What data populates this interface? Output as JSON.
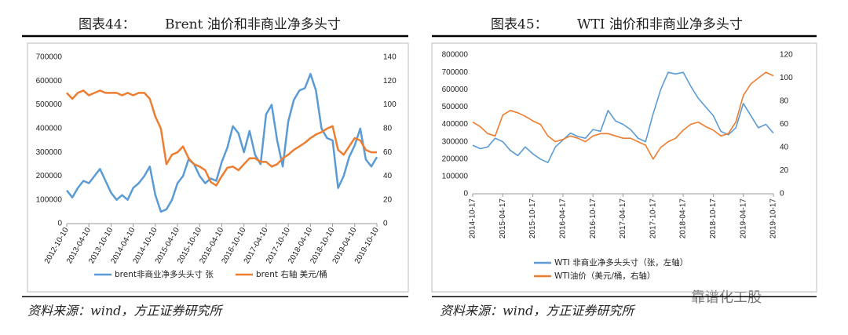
{
  "chart_data": [
    {
      "type": "line",
      "figure_label": "图表44：",
      "title": "Brent 油价和非商业净多头寸",
      "source": "资料来源：wind，方正证券研究所",
      "categories": [
        "2012-10-10",
        null,
        null,
        null,
        "2013-04-10",
        null,
        null,
        null,
        "2013-10-10",
        null,
        null,
        null,
        "2014-04-10",
        null,
        null,
        null,
        "2014-10-10",
        null,
        null,
        null,
        "2015-04-10",
        null,
        null,
        null,
        "2015-10-10",
        null,
        null,
        null,
        "2016-04-10",
        null,
        null,
        null,
        "2016-10-10",
        null,
        null,
        null,
        "2017-04-10",
        null,
        null,
        null,
        "2017-10-10",
        null,
        null,
        null,
        "2018-04-10",
        null,
        null,
        null,
        "2018-10-10",
        null,
        null,
        null,
        "2019-04-10",
        null,
        null,
        null,
        "2019-10-10"
      ],
      "series": [
        {
          "name": "brent非商业净多头头寸 张",
          "color": "#5b9bd5",
          "values": [
            140000,
            110000,
            150000,
            180000,
            170000,
            200000,
            230000,
            180000,
            130000,
            100000,
            120000,
            100000,
            150000,
            170000,
            200000,
            240000,
            120000,
            50000,
            60000,
            100000,
            170000,
            200000,
            270000,
            250000,
            200000,
            170000,
            190000,
            180000,
            260000,
            320000,
            410000,
            380000,
            300000,
            390000,
            290000,
            250000,
            460000,
            500000,
            350000,
            240000,
            430000,
            520000,
            560000,
            570000,
            630000,
            560000,
            400000,
            360000,
            350000,
            150000,
            200000,
            280000,
            330000,
            400000,
            270000,
            240000,
            280000
          ]
        },
        {
          "name": "brent 右轴 美元/桶",
          "color": "#ed7d31",
          "axis": "y2",
          "values": [
            110,
            105,
            110,
            112,
            108,
            110,
            112,
            110,
            110,
            110,
            108,
            110,
            108,
            110,
            110,
            105,
            90,
            80,
            50,
            58,
            60,
            65,
            55,
            50,
            48,
            45,
            35,
            32,
            40,
            47,
            48,
            45,
            50,
            55,
            55,
            52,
            52,
            48,
            50,
            55,
            58,
            62,
            65,
            68,
            72,
            75,
            77,
            80,
            82,
            62,
            58,
            65,
            72,
            70,
            62,
            60,
            60
          ]
        }
      ],
      "ylim": [
        0,
        700000
      ],
      "yticks": [
        0,
        100000,
        200000,
        300000,
        400000,
        500000,
        600000,
        700000
      ],
      "y2lim": [
        0,
        140
      ],
      "y2ticks": [
        0,
        20,
        40,
        60,
        80,
        100,
        120,
        140
      ]
    },
    {
      "type": "line",
      "figure_label": "图表45：",
      "title": "WTI 油价和非商业净多头寸",
      "source": "资料来源：wind，方正证券研究所",
      "categories": [
        "2014-10-17",
        null,
        null,
        null,
        "2015-04-17",
        null,
        null,
        null,
        "2015-10-17",
        null,
        null,
        null,
        "2016-04-17",
        null,
        null,
        null,
        "2016-10-17",
        null,
        null,
        null,
        "2017-04-17",
        null,
        null,
        null,
        "2017-10-17",
        null,
        null,
        null,
        "2018-04-17",
        null,
        null,
        null,
        "2018-10-17",
        null,
        null,
        null,
        "2019-04-17",
        null,
        null,
        null,
        "2019-10-17"
      ],
      "series": [
        {
          "name": "WTI 非商业净多头头寸（张，左轴）",
          "color": "#5b9bd5",
          "values": [
            280000,
            260000,
            270000,
            320000,
            300000,
            250000,
            220000,
            270000,
            230000,
            200000,
            180000,
            270000,
            310000,
            350000,
            330000,
            320000,
            370000,
            360000,
            480000,
            420000,
            400000,
            370000,
            320000,
            300000,
            460000,
            600000,
            700000,
            690000,
            700000,
            620000,
            550000,
            500000,
            450000,
            360000,
            340000,
            380000,
            520000,
            450000,
            380000,
            400000,
            350000
          ]
        },
        {
          "name": "WTI油价（美元/桶，右轴）",
          "color": "#ed7d31",
          "axis": "y2",
          "values": [
            62,
            58,
            52,
            50,
            68,
            72,
            70,
            67,
            63,
            60,
            50,
            45,
            47,
            50,
            48,
            45,
            50,
            52,
            52,
            50,
            48,
            48,
            45,
            42,
            30,
            40,
            45,
            48,
            55,
            60,
            62,
            58,
            55,
            50,
            52,
            62,
            85,
            95,
            100,
            105,
            102
          ]
        }
      ],
      "ylim": [
        0,
        800000
      ],
      "yticks": [
        0,
        100000,
        200000,
        300000,
        400000,
        500000,
        600000,
        700000,
        800000
      ],
      "y2lim": [
        0,
        120
      ],
      "y2ticks": [
        0,
        20,
        40,
        60,
        80,
        100,
        120
      ]
    }
  ],
  "watermark": "靠谱化工股"
}
